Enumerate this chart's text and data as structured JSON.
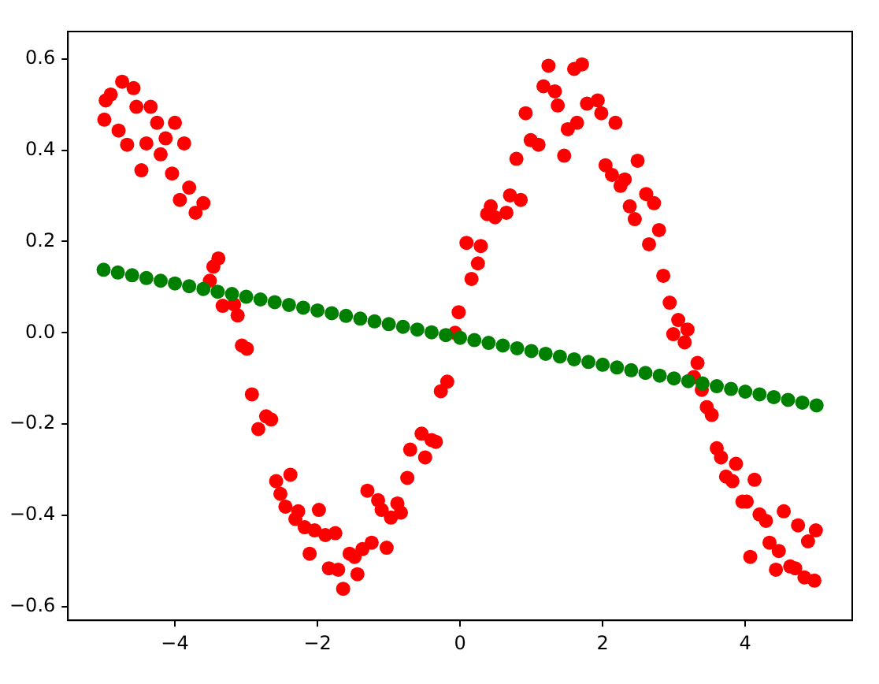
{
  "chart_data": {
    "type": "scatter",
    "marker": "circle",
    "grid": false,
    "legend": false,
    "xlim": [
      -5.5,
      5.5
    ],
    "ylim": [
      -0.63,
      0.66
    ],
    "xticks": [
      {
        "value": -4,
        "label": "−4"
      },
      {
        "value": -2,
        "label": "−2"
      },
      0,
      2,
      4
    ],
    "yticks": [
      {
        "value": -0.6,
        "label": "−0.6"
      },
      {
        "value": -0.4,
        "label": "−0.4"
      },
      {
        "value": -0.2,
        "label": "−0.2"
      },
      {
        "value": 0,
        "label": "0.0"
      },
      {
        "value": 0.2,
        "label": "0.2"
      },
      {
        "value": 0.4,
        "label": "0.4"
      },
      {
        "value": 0.6,
        "label": "0.6"
      }
    ],
    "series": [
      {
        "color": "#ff0000",
        "x": [
          -4.99,
          -4.97,
          -4.9,
          -4.74,
          -4.58,
          -4.79,
          -4.67,
          -4.54,
          -4.4,
          -4.34,
          -4.25,
          -4.47,
          -4.2,
          -4.13,
          -4,
          -3.87,
          -4.04,
          -3.8,
          -3.93,
          -3.71,
          -3.6,
          -3.39,
          -3.46,
          -3.51,
          -3.33,
          -3.17,
          -3.12,
          -3.06,
          -2.99,
          -2.92,
          -2.83,
          -2.72,
          -2.65,
          -2.58,
          -2.52,
          -2.38,
          -2.45,
          -2.31,
          -2.27,
          -2.18,
          -2.11,
          -2.04,
          -1.98,
          -1.89,
          -1.75,
          -1.84,
          -1.71,
          -1.64,
          -1.55,
          -1.48,
          -1.44,
          -1.37,
          -1.24,
          -1.3,
          -1.15,
          -1.1,
          -1.03,
          -0.97,
          -0.88,
          -0.83,
          -0.74,
          -0.7,
          -0.54,
          -0.49,
          -0.4,
          -0.34,
          -0.27,
          -0.18,
          -0.07,
          -0.02,
          0.16,
          0.25,
          0.09,
          0.29,
          0.38,
          0.43,
          0.49,
          0.65,
          0.7,
          0.85,
          0.79,
          0.99,
          1.1,
          0.92,
          1.17,
          1.24,
          1.33,
          1.37,
          1.46,
          1.51,
          1.64,
          1.6,
          1.71,
          1.78,
          1.93,
          1.98,
          2.18,
          2.04,
          2.13,
          2.25,
          2.31,
          2.49,
          2.38,
          2.45,
          2.61,
          2.72,
          2.79,
          2.65,
          2.85,
          2.94,
          3.06,
          3.19,
          2.99,
          3.15,
          3.33,
          3.28,
          3.39,
          3.46,
          3.53,
          3.6,
          3.66,
          3.87,
          3.73,
          3.82,
          4.13,
          3.96,
          4.02,
          4.2,
          4.29,
          4.54,
          4.74,
          4.99,
          4.88,
          4.34,
          4.47,
          4.07,
          4.43,
          4.63,
          4.7,
          4.83,
          4.97
        ],
        "values": [
          0.467,
          0.509,
          0.522,
          0.55,
          0.536,
          0.443,
          0.412,
          0.495,
          0.415,
          0.495,
          0.46,
          0.356,
          0.391,
          0.426,
          0.46,
          0.415,
          0.349,
          0.318,
          0.291,
          0.263,
          0.284,
          0.163,
          0.145,
          0.114,
          0.059,
          0.062,
          0.038,
          -0.028,
          -0.035,
          -0.135,
          -0.211,
          -0.183,
          -0.19,
          -0.325,
          -0.353,
          -0.311,
          -0.381,
          -0.408,
          -0.391,
          -0.426,
          -0.484,
          -0.433,
          -0.388,
          -0.443,
          -0.439,
          -0.516,
          -0.519,
          -0.561,
          -0.484,
          -0.491,
          -0.529,
          -0.474,
          -0.46,
          -0.346,
          -0.367,
          -0.388,
          -0.471,
          -0.405,
          -0.374,
          -0.394,
          -0.318,
          -0.256,
          -0.221,
          -0.273,
          -0.235,
          -0.239,
          -0.128,
          -0.107,
          0,
          0.045,
          0.118,
          0.152,
          0.197,
          0.19,
          0.26,
          0.277,
          0.253,
          0.263,
          0.301,
          0.291,
          0.381,
          0.422,
          0.412,
          0.481,
          0.54,
          0.585,
          0.529,
          0.498,
          0.388,
          0.446,
          0.46,
          0.578,
          0.588,
          0.502,
          0.509,
          0.481,
          0.46,
          0.367,
          0.346,
          0.322,
          0.336,
          0.377,
          0.277,
          0.249,
          0.304,
          0.284,
          0.225,
          0.194,
          0.125,
          0.066,
          0.028,
          0.007,
          -0.003,
          -0.021,
          -0.066,
          -0.097,
          -0.125,
          -0.163,
          -0.18,
          -0.253,
          -0.273,
          -0.287,
          -0.315,
          -0.325,
          -0.322,
          -0.37,
          -0.37,
          -0.398,
          -0.412,
          -0.391,
          -0.422,
          -0.433,
          -0.457,
          -0.46,
          -0.478,
          -0.491,
          -0.519,
          -0.512,
          -0.516,
          -0.536,
          -0.543
        ]
      },
      {
        "color": "#008000",
        "x": [
          -5,
          -4.8,
          -4.6,
          -4.4,
          -4.2,
          -4,
          -3.8,
          -3.6,
          -3.4,
          -3.2,
          -3,
          -2.8,
          -2.6,
          -2.4,
          -2.2,
          -2,
          -1.8,
          -1.6,
          -1.4,
          -1.2,
          -1,
          -0.8,
          -0.6,
          -0.4,
          -0.2,
          0,
          0.2,
          0.4,
          0.6,
          0.8,
          1,
          1.2,
          1.4,
          1.6,
          1.8,
          2,
          2.2,
          2.4,
          2.6,
          2.8,
          3,
          3.2,
          3.4,
          3.6,
          3.8,
          4,
          4.2,
          4.4,
          4.6,
          4.8,
          5
        ],
        "values": [
          0.138,
          0.132,
          0.126,
          0.12,
          0.114,
          0.108,
          0.102,
          0.096,
          0.09,
          0.085,
          0.079,
          0.073,
          0.067,
          0.061,
          0.055,
          0.049,
          0.043,
          0.037,
          0.031,
          0.025,
          0.019,
          0.013,
          0.007,
          0.001,
          -0.005,
          -0.011,
          -0.016,
          -0.022,
          -0.028,
          -0.034,
          -0.04,
          -0.046,
          -0.052,
          -0.058,
          -0.064,
          -0.07,
          -0.076,
          -0.082,
          -0.088,
          -0.094,
          -0.1,
          -0.106,
          -0.111,
          -0.117,
          -0.123,
          -0.129,
          -0.135,
          -0.141,
          -0.147,
          -0.153,
          -0.159
        ]
      }
    ]
  }
}
